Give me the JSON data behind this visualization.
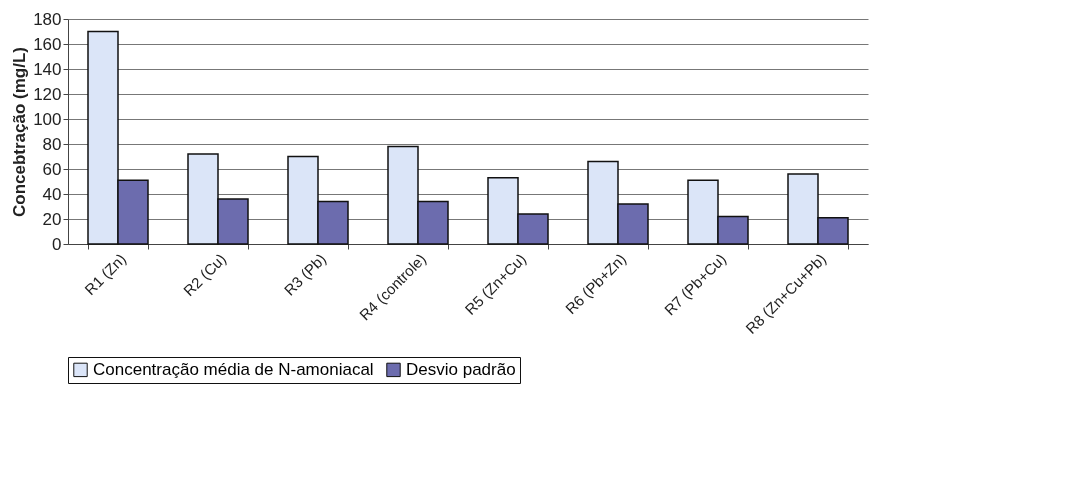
{
  "chart_data": {
    "type": "bar",
    "ylabel": "Concebtração (mg/L)",
    "categories": [
      "R1 (Zn)",
      "R2 (Cu)",
      "R3 (Pb)",
      "R4 (controle)",
      "R5 (Zn+Cu)",
      "R6 (Pb+Zn)",
      "R7 (Pb+Cu)",
      "R8 (Zn+Cu+Pb)"
    ],
    "series": [
      {
        "name": "Concentração média de N-amoniacal",
        "color": "#dbe5f8",
        "values": [
          170,
          72,
          70,
          78,
          53,
          66,
          51,
          56
        ]
      },
      {
        "name": "Desvio padrão",
        "color": "#6c6cae",
        "values": [
          51,
          36,
          34,
          34,
          24,
          32,
          22,
          21
        ]
      }
    ],
    "ylim": [
      0,
      180
    ],
    "yticks": [
      0,
      20,
      40,
      60,
      80,
      100,
      120,
      140,
      160,
      180
    ],
    "grid": "y",
    "legend": "bottom"
  }
}
